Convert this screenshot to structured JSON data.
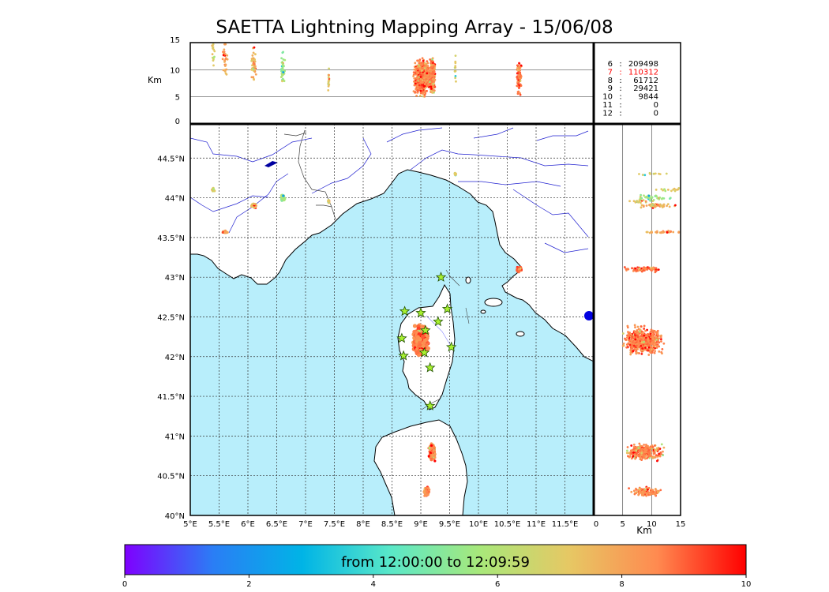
{
  "figure": {
    "title": "SAETTA Lightning Mapping Array - 15/06/08",
    "top_panel": {
      "ylabel": "Km",
      "yticks": [
        "15",
        "10",
        "5",
        "0"
      ]
    },
    "map_panel": {
      "lon_ticks": [
        "5°E",
        "5.5°E",
        "6°E",
        "6.5°E",
        "7°E",
        "7.5°E",
        "8°E",
        "8.5°E",
        "9°E",
        "9.5°E",
        "10°E",
        "10.5°E",
        "11°E",
        "11.5°E"
      ],
      "lat_ticks": [
        "44.5°N",
        "44°N",
        "43.5°N",
        "43°N",
        "42.5°N",
        "42°N",
        "41.5°N",
        "41°N",
        "40.5°N",
        "40°N"
      ],
      "lon_range": [
        5.0,
        12.0
      ],
      "lat_range": [
        40.0,
        44.93
      ]
    },
    "right_panel": {
      "xlabel": "Km",
      "xticks": [
        "0",
        "5",
        "10",
        "15"
      ]
    },
    "station_counts": [
      {
        "stations": "6",
        "count": "209498",
        "highlight": false
      },
      {
        "stations": "7",
        "count": "110312",
        "highlight": true
      },
      {
        "stations": "8",
        "count": "61712",
        "highlight": false
      },
      {
        "stations": "9",
        "count": "29421",
        "highlight": false
      },
      {
        "stations": "10",
        "count": "9844",
        "highlight": false
      },
      {
        "stations": "11",
        "count": "0",
        "highlight": false
      },
      {
        "stations": "12",
        "count": "0",
        "highlight": false
      }
    ],
    "colorbar": {
      "caption": "from 12:00:00 to 12:09:59",
      "ticks": [
        "0",
        "2",
        "4",
        "6",
        "8",
        "10"
      ],
      "range": [
        0,
        10
      ],
      "colors": [
        "#7f00ff",
        "#2a7ef5",
        "#00b4e6",
        "#5ae8c8",
        "#a8e87a",
        "#e6c864",
        "#ff8a50",
        "#ff0000"
      ]
    },
    "colors": {
      "sea": "#b8eefb",
      "land": "#ffffff",
      "rivers": "#2020d0",
      "borders": "#404040",
      "grid": "#333333",
      "highlight": "#ff0000"
    },
    "stations_marker": "yellow-green star"
  },
  "chart_data": {
    "type": "scatter",
    "title": "SAETTA Lightning Mapping Array - 15/06/08",
    "xlabel": "",
    "ylabel": "",
    "xlim": [
      5.0,
      12.0
    ],
    "ylim": [
      40.0,
      44.93
    ],
    "x_tick_labels": [
      "5°E",
      "5.5°E",
      "6°E",
      "6.5°E",
      "7°E",
      "7.5°E",
      "8°E",
      "8.5°E",
      "9°E",
      "9.5°E",
      "10°E",
      "10.5°E",
      "11°E",
      "11.5°E"
    ],
    "y_tick_labels": [
      "44.5°N",
      "44°N",
      "43.5°N",
      "43°N",
      "42.5°N",
      "42°N",
      "41.5°N",
      "41°N",
      "40.5°N",
      "40°N"
    ],
    "stations": [
      {
        "lon": 9.35,
        "lat": 43.0
      },
      {
        "lon": 8.72,
        "lat": 42.57
      },
      {
        "lon": 9.0,
        "lat": 42.55
      },
      {
        "lon": 9.46,
        "lat": 42.6
      },
      {
        "lon": 9.3,
        "lat": 42.44
      },
      {
        "lon": 9.08,
        "lat": 42.33
      },
      {
        "lon": 8.67,
        "lat": 42.23
      },
      {
        "lon": 9.53,
        "lat": 42.12
      },
      {
        "lon": 9.06,
        "lat": 42.05
      },
      {
        "lon": 8.7,
        "lat": 42.01
      },
      {
        "lon": 9.16,
        "lat": 41.86
      },
      {
        "lon": 9.16,
        "lat": 41.38
      }
    ],
    "lightning_clusters": [
      {
        "lon": 9.0,
        "lat": 42.2,
        "height_km": 8.5,
        "color_value": 8.6,
        "note": "dense"
      },
      {
        "lon": 9.2,
        "lat": 40.8,
        "height_km": 8.8,
        "color_value": 8.6
      },
      {
        "lon": 9.1,
        "lat": 40.3,
        "height_km": 9.0,
        "color_value": 8.5
      },
      {
        "lon": 10.7,
        "lat": 43.1,
        "height_km": 8.7,
        "color_value": 8.8
      },
      {
        "lon": 6.1,
        "lat": 43.9,
        "height_km": 11.0,
        "color_value": 7.5
      },
      {
        "lon": 6.6,
        "lat": 44.0,
        "height_km": 10.0,
        "color_value": 5.5
      },
      {
        "lon": 5.6,
        "lat": 43.57,
        "height_km": 12.0,
        "color_value": 8.0
      },
      {
        "lon": 5.4,
        "lat": 44.1,
        "height_km": 13.0,
        "color_value": 7.0
      },
      {
        "lon": 7.4,
        "lat": 43.95,
        "height_km": 8.0,
        "color_value": 7.0
      },
      {
        "lon": 9.6,
        "lat": 44.3,
        "height_km": 10.0,
        "color_value": 7.0
      }
    ]
  }
}
